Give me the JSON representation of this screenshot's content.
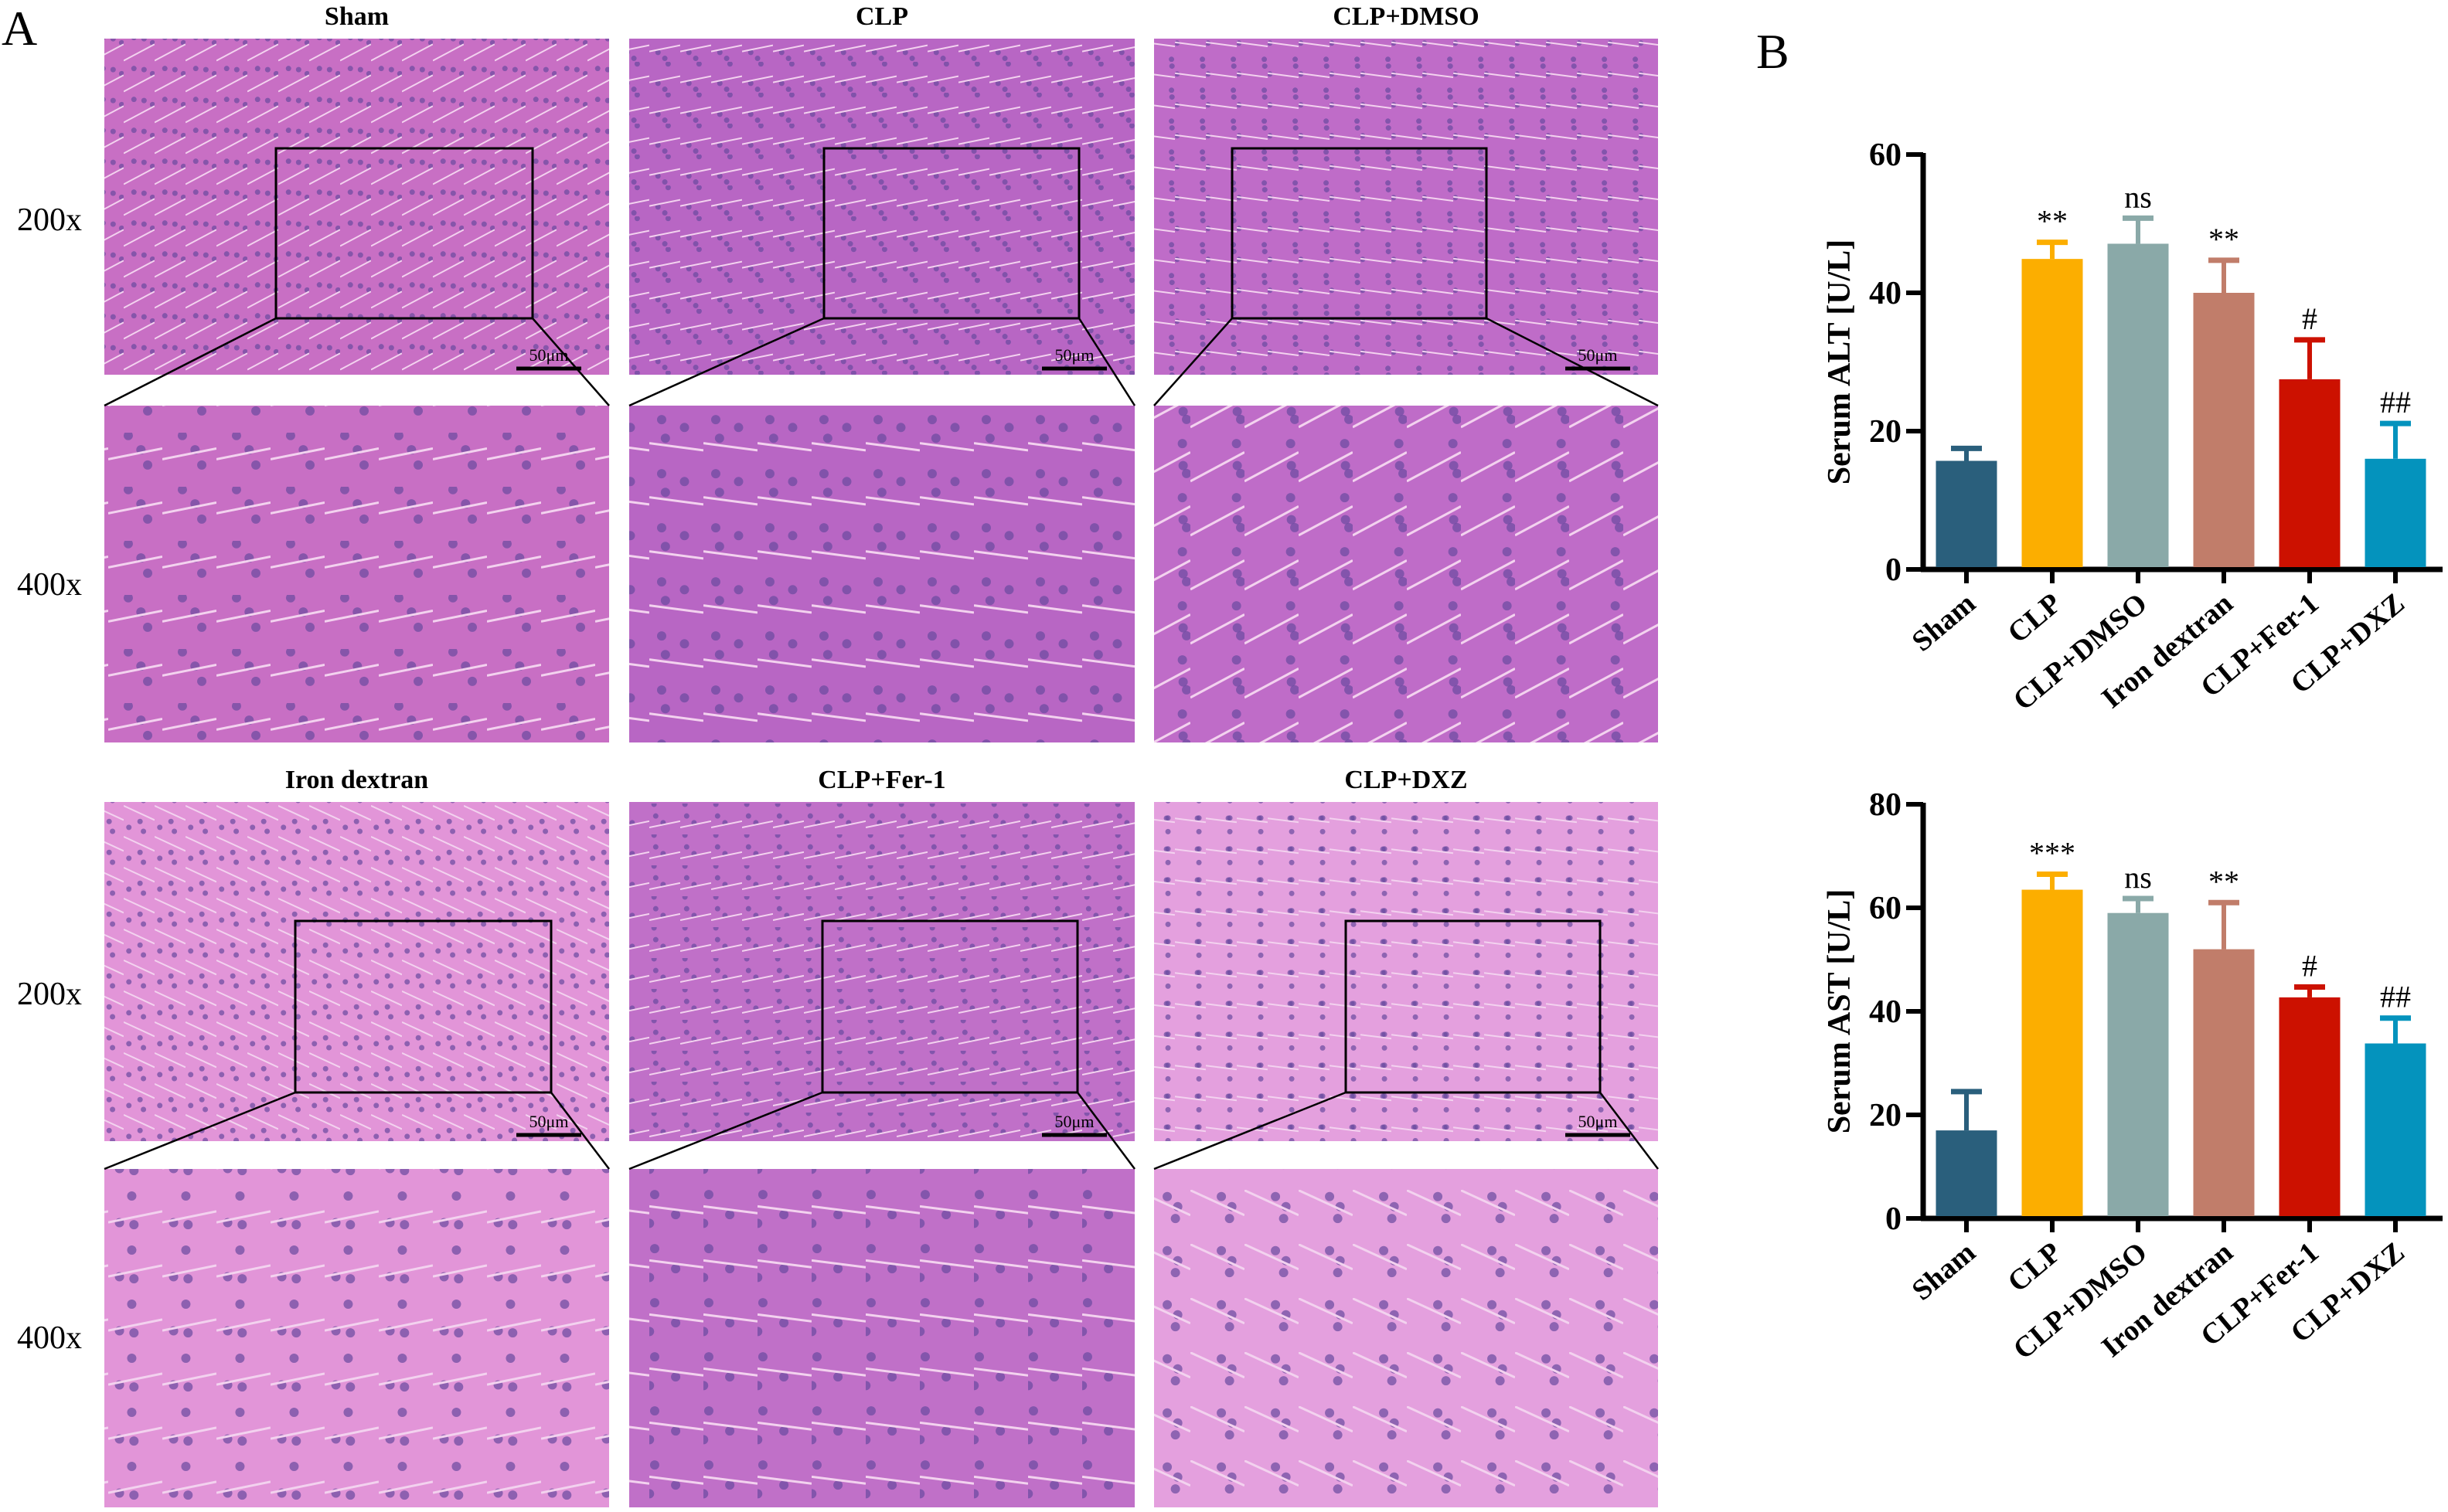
{
  "panel_a": {
    "letter": "A",
    "row_labels": [
      "200x",
      "400x",
      "200x",
      "400x"
    ],
    "scale_bar_label": "50μm",
    "groups": [
      {
        "title": "Sham",
        "tint": "#c86fc4"
      },
      {
        "title": "CLP",
        "tint": "#b866c4"
      },
      {
        "title": "CLP+DMSO",
        "tint": "#bf6cc8"
      },
      {
        "title": "Iron dextran",
        "tint": "#e295d8"
      },
      {
        "title": "CLP+Fer-1",
        "tint": "#c070c8"
      },
      {
        "title": "CLP+DXZ",
        "tint": "#e4a0de"
      }
    ]
  },
  "panel_b": {
    "letter": "B"
  },
  "chart_data": [
    {
      "type": "bar",
      "ylabel": "Serum ALT [U/L]",
      "ylim": [
        0,
        60
      ],
      "yticks": [
        0,
        20,
        40,
        60
      ],
      "categories": [
        "Sham",
        "CLP",
        "CLP+DMSO",
        "Iron dextran",
        "CLP+Fer-1",
        "CLP+DXZ"
      ],
      "values": [
        15.7,
        44.9,
        47.1,
        40.0,
        27.5,
        16.0
      ],
      "error_upper": [
        17.5,
        47.3,
        50.8,
        44.7,
        33.2,
        21.1
      ],
      "annotations": [
        "",
        "**",
        "ns",
        "**",
        "#",
        "##"
      ],
      "colors": [
        "#2a5f7c",
        "#fcae00",
        "#8aa9a8",
        "#c17d6a",
        "#cc1100",
        "#0493bd"
      ]
    },
    {
      "type": "bar",
      "ylabel": "Serum AST [U/L]",
      "ylim": [
        0,
        80
      ],
      "yticks": [
        0,
        20,
        40,
        60,
        80
      ],
      "categories": [
        "Sham",
        "CLP",
        "CLP+DMSO",
        "Iron dextran",
        "CLP+Fer-1",
        "CLP+DXZ"
      ],
      "values": [
        17.0,
        63.5,
        59.0,
        52.0,
        42.7,
        33.8
      ],
      "error_upper": [
        24.5,
        66.5,
        61.8,
        61.0,
        44.7,
        38.7
      ],
      "annotations": [
        "",
        "***",
        "ns",
        "**",
        "#",
        "##"
      ],
      "colors": [
        "#2a5f7c",
        "#fcae00",
        "#8aa9a8",
        "#c17d6a",
        "#cc1100",
        "#0493bd"
      ]
    }
  ]
}
